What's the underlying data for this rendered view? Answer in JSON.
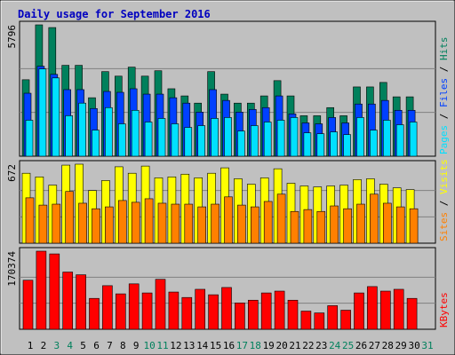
{
  "chart_data": [
    {
      "type": "bar",
      "title": "Daily usage for September 2016",
      "ylim": [
        0,
        5796
      ],
      "yticks": [
        5796
      ],
      "grid_divisions": 3,
      "series": [
        {
          "name": "Hits",
          "color": "#00805c",
          "values": [
            3374,
            5796,
            5677,
            4010,
            4010,
            2580,
            3732,
            3533,
            3930,
            3533,
            3771,
            2977,
            2660,
            2342,
            3732,
            2739,
            2342,
            2342,
            2660,
            3335,
            2660,
            1786,
            1786,
            2144,
            1786,
            3057,
            3057,
            3255,
            2620,
            2620,
            null
          ]
        },
        {
          "name": "Files",
          "color": "#0040ff",
          "values": [
            2779,
            3970,
            3612,
            2938,
            2938,
            2104,
            2858,
            2819,
            2977,
            2739,
            2739,
            2580,
            2342,
            1945,
            2938,
            2461,
            1945,
            2064,
            2144,
            2660,
            1866,
            1469,
            1429,
            1707,
            1469,
            2302,
            2302,
            2461,
            2025,
            2025,
            null
          ]
        },
        {
          "name": "Pages",
          "color": "#00e0ff",
          "values": [
            1588,
            3851,
            3454,
            1786,
            2342,
            1151,
            2144,
            1429,
            2025,
            1508,
            1667,
            1429,
            1270,
            1350,
            1667,
            1707,
            1112,
            1350,
            1508,
            1588,
            1707,
            1032,
            992,
            1072,
            953,
            1707,
            1151,
            1588,
            1389,
            1508,
            null
          ]
        }
      ]
    },
    {
      "type": "bar",
      "ylim": [
        0,
        672
      ],
      "yticks": [
        672
      ],
      "grid_divisions": 3,
      "series": [
        {
          "name": "Visits",
          "color": "#ffff00",
          "values": [
            595,
            564,
            494,
            664,
            672,
            448,
            533,
            650,
            595,
            656,
            556,
            564,
            587,
            556,
            595,
            641,
            548,
            502,
            556,
            633,
            510,
            487,
            479,
            487,
            494,
            541,
            548,
            502,
            471,
            456,
            null
          ]
        },
        {
          "name": "Sites",
          "color": "#ff8000",
          "values": [
            386,
            324,
            332,
            440,
            340,
            293,
            309,
            363,
            348,
            378,
            340,
            332,
            332,
            309,
            332,
            394,
            324,
            309,
            355,
            417,
            270,
            286,
            270,
            317,
            293,
            332,
            417,
            340,
            309,
            293,
            null
          ]
        }
      ]
    },
    {
      "type": "bar",
      "ylim": [
        0,
        170374
      ],
      "yticks": [
        170374
      ],
      "grid_divisions": 3,
      "categories": [
        "1",
        "2",
        "3",
        "4",
        "5",
        "6",
        "7",
        "8",
        "9",
        "10",
        "11",
        "12",
        "13",
        "14",
        "15",
        "16",
        "17",
        "18",
        "19",
        "20",
        "21",
        "22",
        "23",
        "24",
        "25",
        "26",
        "27",
        "28",
        "29",
        "30",
        "31"
      ],
      "label_colors": [
        "#000000",
        "#000000",
        "#00805c",
        "#00805c",
        "#000000",
        "#000000",
        "#000000",
        "#000000",
        "#000000",
        "#00805c",
        "#00805c",
        "#000000",
        "#000000",
        "#000000",
        "#000000",
        "#000000",
        "#00805c",
        "#00805c",
        "#000000",
        "#000000",
        "#000000",
        "#000000",
        "#000000",
        "#00805c",
        "#00805c",
        "#000000",
        "#000000",
        "#000000",
        "#000000",
        "#000000",
        "#00805c"
      ],
      "series": [
        {
          "name": "KBytes",
          "color": "#ff0000",
          "values": [
            106978,
            170374,
            164430,
            124808,
            118864,
            67357,
            95093,
            77263,
            99055,
            79244,
            108959,
            81225,
            69338,
            87169,
            75282,
            91131,
            57452,
            63395,
            79244,
            83206,
            63395,
            39622,
            35660,
            51509,
            41603,
            79244,
            93112,
            83206,
            87169,
            67357,
            null
          ]
        }
      ]
    }
  ]
}
